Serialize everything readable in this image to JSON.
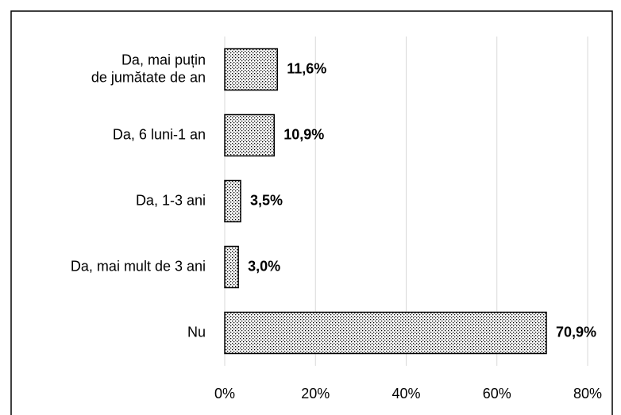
{
  "chart_data": {
    "type": "hbar",
    "categories": [
      "Da, mai puțin\nde jumătate de an",
      "Da, 6 luni-1 an",
      "Da, 1-3 ani",
      "Da, mai mult de 3 ani",
      "Nu"
    ],
    "values": [
      11.6,
      10.9,
      3.5,
      3.0,
      70.9
    ],
    "value_labels": [
      "11,6%",
      "10,9%",
      "3,5%",
      "3,0%",
      "70,9%"
    ],
    "color": "#000000",
    "xlim": [
      0,
      80
    ],
    "xticks": [
      {
        "value": 0,
        "label": "0%"
      },
      {
        "value": 20,
        "label": "20%"
      },
      {
        "value": 40,
        "label": "40%"
      },
      {
        "value": 60,
        "label": "60%"
      },
      {
        "value": 80,
        "label": "80%"
      }
    ],
    "grid": true
  }
}
